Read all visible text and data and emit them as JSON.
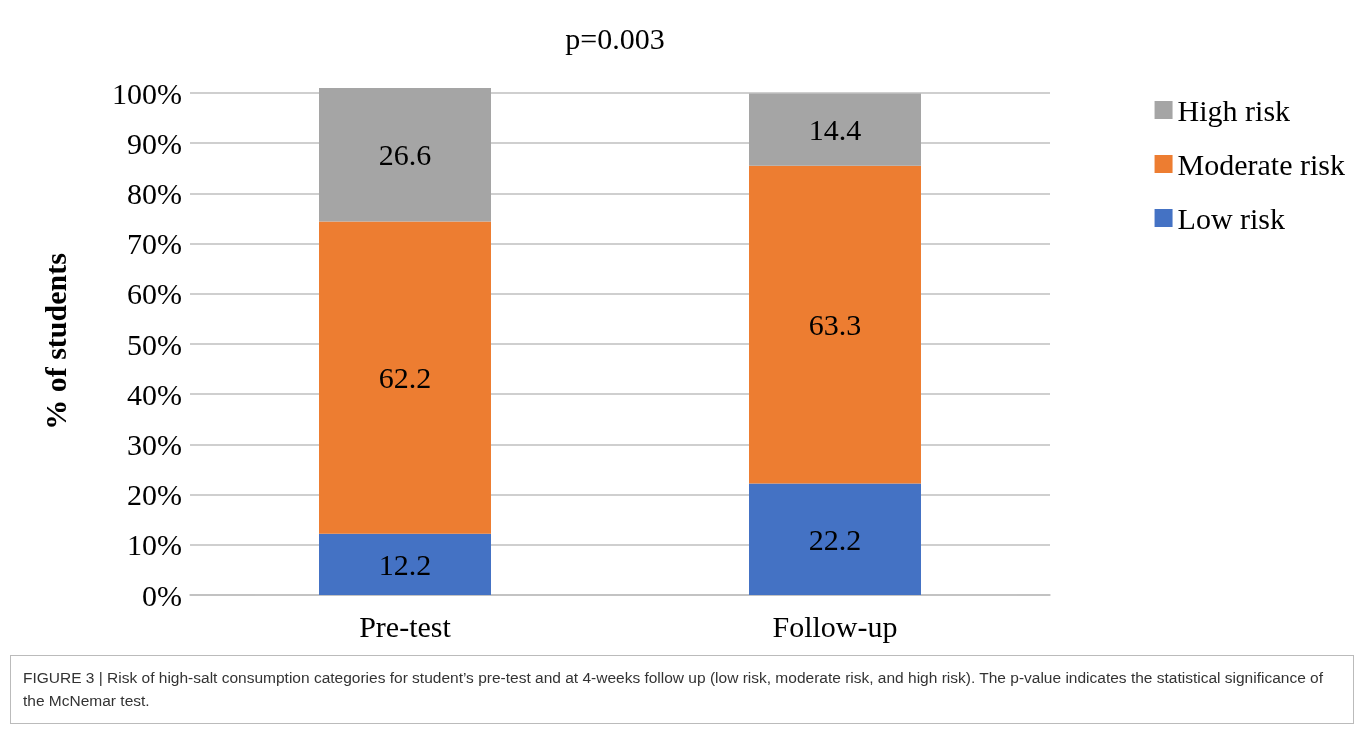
{
  "chart_data": {
    "type": "bar",
    "title": "p=0.003",
    "ylabel": "% of students",
    "categories": [
      "Pre-test",
      "Follow-up"
    ],
    "series": [
      {
        "name": "Low risk",
        "color": "#4472c4",
        "values": [
          12.2,
          22.2
        ]
      },
      {
        "name": "Moderate risk",
        "color": "#ed7d31",
        "values": [
          62.2,
          63.3
        ]
      },
      {
        "name": "High risk",
        "color": "#a5a5a5",
        "values": [
          26.6,
          14.4
        ]
      }
    ],
    "stacked": true,
    "data_labels": true,
    "legend": "right",
    "grid": "y",
    "ylim": [
      0,
      101
    ],
    "yticks": [
      {
        "value": 0,
        "label": "0%"
      },
      {
        "value": 10,
        "label": "10%"
      },
      {
        "value": 20,
        "label": "20%"
      },
      {
        "value": 30,
        "label": "30%"
      },
      {
        "value": 40,
        "label": "40%"
      },
      {
        "value": 50,
        "label": "50%"
      },
      {
        "value": 60,
        "label": "60%"
      },
      {
        "value": 70,
        "label": "70%"
      },
      {
        "value": 80,
        "label": "80%"
      },
      {
        "value": 90,
        "label": "90%"
      },
      {
        "value": 100,
        "label": "100%"
      }
    ],
    "annotations": [
      "FIGURE 3 | Risk of high-salt consumption categories for student’s pre-test and at 4-weeks follow up (low risk, moderate risk, and high risk). The p-value indicates the statistical significance of the McNemar test."
    ]
  }
}
